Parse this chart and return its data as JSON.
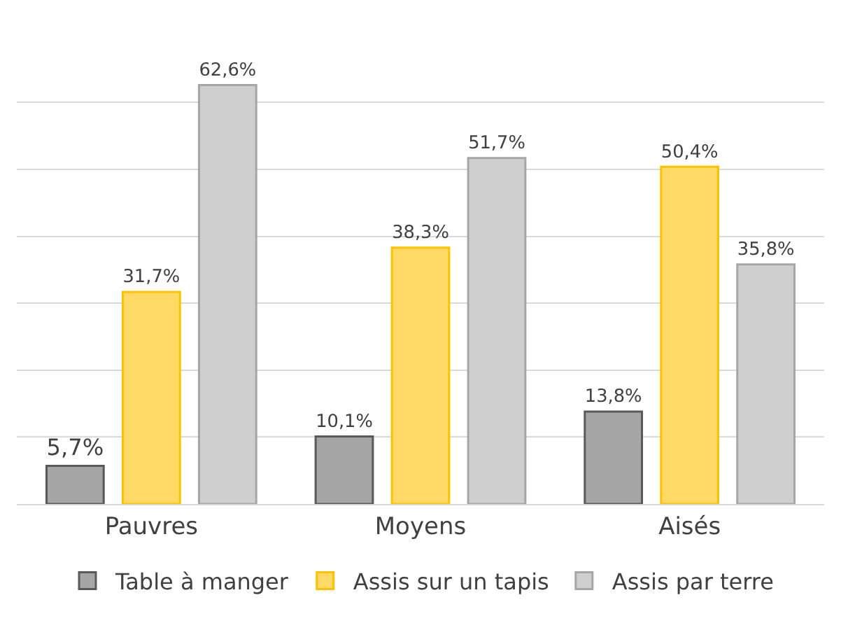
{
  "chart_data": {
    "type": "bar",
    "categories": [
      "Pauvres",
      "Moyens",
      "Aisés"
    ],
    "series": [
      {
        "name": "Table à manger",
        "color": "#a5a5a5",
        "values": [
          5.7,
          10.1,
          13.8
        ],
        "value_labels": [
          "5,7%",
          "10,1%",
          "13,8%"
        ]
      },
      {
        "name": "Assis sur un tapis",
        "color": "#ffd966",
        "values": [
          31.7,
          38.3,
          50.4
        ],
        "value_labels": [
          "31,7%",
          "38,3%",
          "50,4%"
        ]
      },
      {
        "name": "Assis par terre",
        "color": "#cfcfcf",
        "values": [
          62.6,
          51.7,
          35.8
        ],
        "value_labels": [
          "62,6%",
          "51,7%",
          "35,8%"
        ]
      }
    ],
    "yticks": [
      {
        "value": 0,
        "label": null
      },
      {
        "value": 10,
        "label": null
      },
      {
        "value": 20,
        "label": null
      },
      {
        "value": 30,
        "label": null
      },
      {
        "value": 40,
        "label": null
      },
      {
        "value": 50,
        "label": null
      },
      {
        "value": 60,
        "label": null
      }
    ],
    "tick_labels": "x",
    "grid": "y",
    "legend": "bottom"
  }
}
